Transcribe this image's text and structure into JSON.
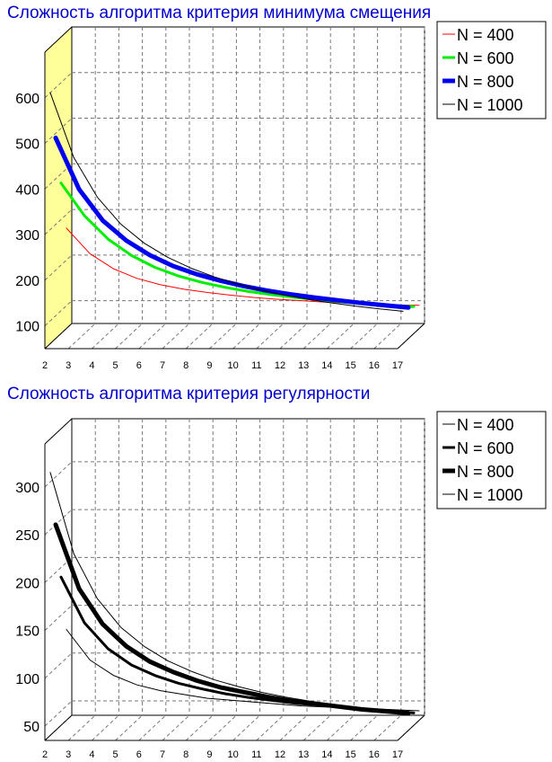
{
  "chart_data": [
    {
      "type": "line",
      "title": "Сложность алгоритма критерия минимума смещения",
      "title_color": "#0000cc",
      "x": [
        2,
        3,
        4,
        5,
        6,
        7,
        8,
        9,
        10,
        11,
        12,
        13,
        14,
        15,
        16,
        17
      ],
      "xticks": [
        "2",
        "3",
        "4",
        "5",
        "6",
        "7",
        "8",
        "9",
        "10",
        "11",
        "12",
        "13",
        "14",
        "15",
        "16",
        "17"
      ],
      "yticks": [
        "100",
        "200",
        "300",
        "400",
        "500",
        "600"
      ],
      "ylim": [
        50,
        700
      ],
      "xlim": [
        2,
        17
      ],
      "grid": true,
      "side_wall_color": "#ffff99",
      "legend_position": "top-right",
      "series": [
        {
          "name": "N = 400",
          "color": "#ff0000",
          "width": 1,
          "values": [
            270,
            214,
            181,
            160,
            146,
            136,
            129,
            123,
            118,
            114,
            111,
            108,
            106,
            104,
            102,
            101
          ]
        },
        {
          "name": "N = 600",
          "color": "#00ee00",
          "width": 3,
          "values": [
            380,
            308,
            257,
            221,
            195,
            176,
            162,
            151,
            142,
            135,
            129,
            124,
            119,
            115,
            112,
            109
          ]
        },
        {
          "name": "N = 800",
          "color": "#0000ee",
          "width": 5,
          "values": [
            490,
            377,
            309,
            265,
            233,
            209,
            191,
            177,
            165,
            155,
            147,
            140,
            134,
            128,
            123,
            118
          ]
        },
        {
          "name": "N = 1000",
          "color": "#000000",
          "width": 1,
          "values": [
            600,
            458,
            371,
            312,
            270,
            239,
            215,
            196,
            180,
            167,
            156,
            147,
            139,
            132,
            126,
            121
          ]
        }
      ]
    },
    {
      "type": "line",
      "title": "Сложность алгоритма критерия регулярности",
      "title_color": "#0000cc",
      "x": [
        2,
        3,
        4,
        5,
        6,
        7,
        8,
        9,
        10,
        11,
        12,
        13,
        14,
        15,
        16,
        17
      ],
      "xticks": [
        "2",
        "3",
        "4",
        "5",
        "6",
        "7",
        "8",
        "9",
        "10",
        "11",
        "12",
        "13",
        "14",
        "15",
        "16",
        "17"
      ],
      "yticks": [
        "50",
        "100",
        "150",
        "200",
        "250",
        "300"
      ],
      "ylim": [
        35,
        345
      ],
      "xlim": [
        2,
        17
      ],
      "grid": true,
      "legend_position": "top-right",
      "series": [
        {
          "name": "N = 400",
          "color": "#000000",
          "width": 1,
          "values": [
            130,
            98,
            82,
            72,
            66,
            62,
            58,
            56,
            54,
            52,
            50,
            49,
            48,
            47,
            46,
            45
          ]
        },
        {
          "name": "N = 600",
          "color": "#000000",
          "width": 3,
          "values": [
            190,
            142,
            115,
            98,
            87,
            79,
            73,
            68,
            64,
            61,
            58,
            56,
            54,
            52,
            50,
            48
          ]
        },
        {
          "name": "N = 800",
          "color": "#000000",
          "width": 5,
          "values": [
            250,
            183,
            146,
            123,
            107,
            96,
            87,
            80,
            75,
            70,
            66,
            63,
            60,
            57,
            55,
            53
          ]
        },
        {
          "name": "N = 1000",
          "color": "#000000",
          "width": 1,
          "values": [
            310,
            225,
            178,
            148,
            128,
            113,
            102,
            93,
            86,
            80,
            75,
            71,
            67,
            64,
            61,
            58
          ]
        }
      ]
    }
  ]
}
